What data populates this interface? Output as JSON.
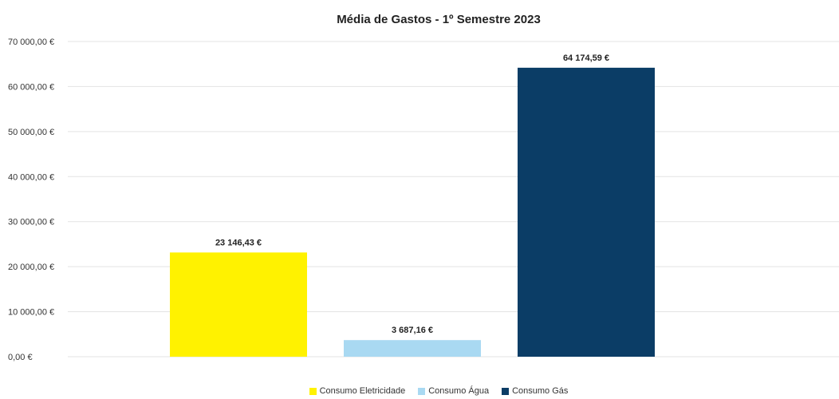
{
  "chart_data": {
    "type": "bar",
    "title": "Média de Gastos - 1º Semestre 2023",
    "categories": [
      "Consumo Eletricidade",
      "Consumo Água",
      "Consumo Gás"
    ],
    "values": [
      23146.43,
      3687.16,
      64174.59
    ],
    "value_labels": [
      "23 146,43 €",
      "3 687,16 €",
      "64 174,59 €"
    ],
    "colors": [
      "#FFF200",
      "#A9D9F2",
      "#0B3D66"
    ],
    "ylim": [
      0,
      70000
    ],
    "yticks": [
      0,
      10000,
      20000,
      30000,
      40000,
      50000,
      60000,
      70000
    ],
    "ytick_labels": [
      "0,00 €",
      "10 000,00 €",
      "20 000,00 €",
      "30 000,00 €",
      "40 000,00 €",
      "50 000,00 €",
      "60 000,00 €",
      "70 000,00 €"
    ],
    "grid": true,
    "legend_position": "bottom"
  }
}
